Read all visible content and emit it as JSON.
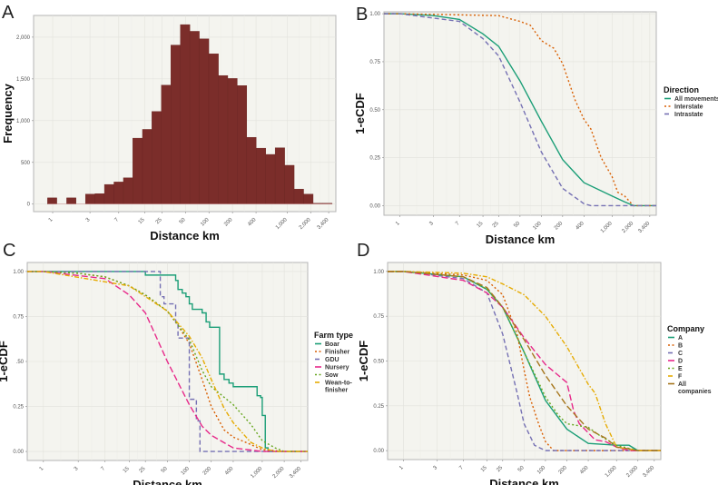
{
  "chart_data": [
    {
      "panel": "A",
      "type": "bar",
      "xlabel": "Distance km",
      "ylabel": "Frequency",
      "x_scale": "log",
      "xlim": [
        0.57,
        4200
      ],
      "ylim": [
        -90,
        2260
      ],
      "x_ticks": [
        1,
        3,
        7,
        15,
        25,
        50,
        100,
        200,
        400,
        1000,
        2000,
        3400
      ],
      "x_tick_labels": [
        "1",
        "3",
        "7",
        "15",
        "25",
        "50",
        "100",
        "200",
        "400",
        "1,000",
        "2,000",
        "3,400"
      ],
      "y_ticks": [
        0,
        500,
        1000,
        1500,
        2000
      ],
      "y_tick_labels": [
        "0",
        "500",
        "1,000",
        "1,500",
        "2,000"
      ],
      "grid": true,
      "bar_color": "#7b2d2a",
      "bin_edges": [
        0.86,
        1.13,
        1.51,
        1.99,
        2.63,
        3.48,
        4.6,
        6.08,
        8.04,
        10.6,
        14.1,
        18.6,
        24.6,
        32.5,
        43,
        56.9,
        75.2,
        99.5,
        132,
        174,
        230,
        304,
        402,
        532,
        703,
        930,
        1230,
        1626,
        2150,
        2843,
        3760
      ],
      "counts": [
        75,
        0,
        75,
        0,
        120,
        125,
        235,
        265,
        315,
        790,
        895,
        1110,
        1425,
        1905,
        2150,
        2070,
        1980,
        1800,
        1540,
        1505,
        1420,
        800,
        670,
        595,
        675,
        465,
        180,
        120,
        10,
        10
      ]
    },
    {
      "panel": "B",
      "type": "line",
      "xlabel": "Distance km",
      "ylabel": "1-eCDF",
      "x_scale": "log",
      "xlim": [
        0.6,
        4200
      ],
      "ylim": [
        -0.05,
        1.01
      ],
      "x_ticks": [
        1,
        3,
        7,
        15,
        25,
        50,
        100,
        200,
        400,
        1000,
        2000,
        3400
      ],
      "x_tick_labels": [
        "1",
        "3",
        "7",
        "15",
        "25",
        "50",
        "100",
        "200",
        "400",
        "1,000",
        "2,000",
        "3,400"
      ],
      "y_ticks": [
        0,
        0.25,
        0.5,
        0.75,
        1
      ],
      "y_tick_labels": [
        "0.00",
        "0.25",
        "0.50",
        "0.75",
        "1.00"
      ],
      "grid": true,
      "legend_title": "Direction",
      "legend_position": "right",
      "series": [
        {
          "name": "All movements",
          "color": "#1b9e77",
          "dash": "solid",
          "x": [
            0.6,
            1,
            3,
            7,
            15,
            25,
            50,
            100,
            200,
            400,
            1000,
            1500,
            2000,
            4200
          ],
          "y": [
            1,
            1,
            0.99,
            0.97,
            0.895,
            0.83,
            0.65,
            0.44,
            0.24,
            0.12,
            0.05,
            0.02,
            0,
            0
          ]
        },
        {
          "name": "Interstate",
          "color": "#d95f02",
          "dash": "dotted",
          "x": [
            0.6,
            1,
            25,
            50,
            70,
            100,
            150,
            200,
            300,
            400,
            500,
            700,
            1000,
            1200,
            1500,
            2000,
            4200
          ],
          "y": [
            1,
            1,
            0.99,
            0.96,
            0.94,
            0.86,
            0.82,
            0.74,
            0.55,
            0.45,
            0.4,
            0.25,
            0.15,
            0.07,
            0.05,
            0,
            0
          ]
        },
        {
          "name": "Intrastate",
          "color": "#7570b3",
          "dash": "dashed",
          "x": [
            0.6,
            1,
            7,
            15,
            25,
            50,
            100,
            200,
            400,
            500,
            4200
          ],
          "y": [
            1,
            1,
            0.96,
            0.87,
            0.78,
            0.54,
            0.28,
            0.09,
            0.01,
            0,
            0
          ]
        }
      ]
    },
    {
      "panel": "C",
      "type": "line",
      "xlabel": "Distance km",
      "ylabel": "1-eCDF",
      "x_scale": "log",
      "xlim": [
        0.6,
        4200
      ],
      "ylim": [
        -0.05,
        1.05
      ],
      "x_ticks": [
        1,
        3,
        7,
        15,
        25,
        50,
        100,
        200,
        400,
        1000,
        2000,
        3400
      ],
      "x_tick_labels": [
        "1",
        "3",
        "7",
        "15",
        "25",
        "50",
        "100",
        "200",
        "400",
        "1,000",
        "2,000",
        "3,400"
      ],
      "y_ticks": [
        0,
        0.25,
        0.5,
        0.75,
        1
      ],
      "y_tick_labels": [
        "0.00",
        "0.25",
        ".50",
        "0.75",
        "1.00"
      ],
      "grid": true,
      "legend_title": "Farm type",
      "legend_position": "right",
      "series": [
        {
          "name": "Boar",
          "color": "#1b9e77",
          "dash": "solid",
          "step": true,
          "x": [
            0.6,
            25,
            65,
            70,
            80,
            90,
            100,
            110,
            150,
            170,
            190,
            260,
            300,
            350,
            400,
            850,
            950,
            1000,
            1100,
            1200,
            4200
          ],
          "y": [
            1,
            0.98,
            0.95,
            0.9,
            0.88,
            0.86,
            0.82,
            0.79,
            0.77,
            0.72,
            0.69,
            0.43,
            0.4,
            0.38,
            0.36,
            0.31,
            0.3,
            0.2,
            0.02,
            0,
            0
          ]
        },
        {
          "name": "Finisher",
          "color": "#d95f02",
          "dash": "dotted",
          "x": [
            0.6,
            1,
            3,
            7,
            15,
            25,
            50,
            70,
            100,
            150,
            200,
            300,
            400,
            600,
            1000,
            2000,
            4200
          ],
          "y": [
            1,
            1,
            0.99,
            0.97,
            0.92,
            0.87,
            0.78,
            0.7,
            0.6,
            0.4,
            0.25,
            0.12,
            0.08,
            0.05,
            0.01,
            0,
            0
          ]
        },
        {
          "name": "GDU",
          "color": "#7570b3",
          "dash": "dashed",
          "step": true,
          "x": [
            0.6,
            40,
            45,
            65,
            70,
            100,
            125,
            140,
            4200
          ],
          "y": [
            1,
            0.86,
            0.82,
            0.72,
            0.63,
            0.29,
            0.17,
            0,
            0
          ]
        },
        {
          "name": "Nursery",
          "color": "#e7298a",
          "dash": "longdash",
          "x": [
            0.6,
            1,
            7,
            15,
            25,
            50,
            100,
            150,
            200,
            400,
            1000,
            4200
          ],
          "y": [
            1,
            1,
            0.96,
            0.87,
            0.77,
            0.5,
            0.26,
            0.14,
            0.09,
            0.02,
            0,
            0
          ]
        },
        {
          "name": "Sow",
          "color": "#66a61e",
          "dash": "dotted",
          "x": [
            0.6,
            1,
            3,
            7,
            15,
            25,
            50,
            100,
            150,
            200,
            400,
            700,
            1000,
            1500,
            2000,
            4200
          ],
          "y": [
            1,
            1,
            0.99,
            0.97,
            0.92,
            0.87,
            0.78,
            0.62,
            0.45,
            0.36,
            0.26,
            0.15,
            0.06,
            0.02,
            0,
            0
          ]
        },
        {
          "name": "Wean-to-finisher",
          "color": "#e6ab02",
          "dash": "dotdash",
          "x": [
            0.6,
            1,
            15,
            50,
            100,
            150,
            200,
            300,
            400,
            700,
            1000,
            1500,
            4200
          ],
          "y": [
            1,
            1,
            0.92,
            0.78,
            0.64,
            0.52,
            0.4,
            0.24,
            0.16,
            0.05,
            0.02,
            0,
            0
          ]
        }
      ]
    },
    {
      "panel": "D",
      "type": "line",
      "xlabel": "Distance km",
      "ylabel": "1-eCDF",
      "x_scale": "log",
      "xlim": [
        0.6,
        4200
      ],
      "ylim": [
        -0.05,
        1.05
      ],
      "x_ticks": [
        1,
        3,
        7,
        15,
        25,
        50,
        100,
        200,
        400,
        1000,
        2000,
        3400
      ],
      "x_tick_labels": [
        "1",
        "3",
        "7",
        "15",
        "25",
        "50",
        "100",
        "200",
        "400",
        "1,000",
        "2,000",
        "3,400"
      ],
      "y_ticks": [
        0,
        0.25,
        0.5,
        0.75,
        1
      ],
      "y_tick_labels": [
        "0.00",
        "0.25",
        "0.50",
        "0.75",
        "1.00"
      ],
      "grid": true,
      "legend_title": "Company",
      "legend_position": "right",
      "series": [
        {
          "name": "A",
          "color": "#1b9e77",
          "dash": "solid",
          "x": [
            0.6,
            1,
            7,
            15,
            25,
            50,
            100,
            200,
            400,
            1000,
            1500,
            2000,
            4200
          ],
          "y": [
            1,
            1,
            0.97,
            0.9,
            0.8,
            0.55,
            0.28,
            0.12,
            0.04,
            0.03,
            0.03,
            0,
            0
          ]
        },
        {
          "name": "B",
          "color": "#d95f02",
          "dash": "dotted",
          "x": [
            0.6,
            1,
            7,
            15,
            25,
            40,
            50,
            60,
            80,
            100,
            130,
            4200
          ],
          "y": [
            1,
            1,
            0.98,
            0.95,
            0.87,
            0.65,
            0.45,
            0.3,
            0.15,
            0.05,
            0,
            0
          ]
        },
        {
          "name": "C",
          "color": "#7570b3",
          "dash": "dashed",
          "x": [
            0.6,
            1,
            7,
            15,
            25,
            40,
            50,
            70,
            100,
            4200
          ],
          "y": [
            1,
            1,
            0.96,
            0.88,
            0.65,
            0.32,
            0.15,
            0.03,
            0,
            0
          ]
        },
        {
          "name": "D",
          "color": "#e7298a",
          "dash": "longdash",
          "x": [
            0.6,
            1,
            7,
            15,
            25,
            50,
            100,
            200,
            250,
            300,
            500,
            700,
            1000,
            1500,
            4200
          ],
          "y": [
            1,
            1,
            0.95,
            0.88,
            0.8,
            0.63,
            0.48,
            0.38,
            0.22,
            0.15,
            0.06,
            0.05,
            0.02,
            0,
            0
          ]
        },
        {
          "name": "E",
          "color": "#66a61e",
          "dash": "dotted",
          "x": [
            0.6,
            1,
            7,
            15,
            25,
            50,
            100,
            150,
            200,
            400,
            600,
            1000,
            2000,
            4200
          ],
          "y": [
            1,
            1,
            0.97,
            0.9,
            0.8,
            0.55,
            0.3,
            0.2,
            0.15,
            0.13,
            0.08,
            0.03,
            0,
            0
          ]
        },
        {
          "name": "F",
          "color": "#e6ab02",
          "dash": "dotdash",
          "x": [
            0.6,
            1,
            7,
            15,
            25,
            50,
            100,
            200,
            400,
            500,
            700,
            1000,
            2000,
            4200
          ],
          "y": [
            1,
            1,
            0.99,
            0.97,
            0.93,
            0.87,
            0.75,
            0.58,
            0.37,
            0.32,
            0.15,
            0.02,
            0,
            0
          ]
        },
        {
          "name": "All companies",
          "color": "#a6761d",
          "dash": "longdash",
          "x": [
            0.6,
            1,
            7,
            15,
            25,
            50,
            100,
            200,
            400,
            700,
            1000,
            1500,
            2000,
            4200
          ],
          "y": [
            1,
            1,
            0.97,
            0.91,
            0.8,
            0.62,
            0.42,
            0.25,
            0.12,
            0.07,
            0.02,
            0.01,
            0,
            0
          ]
        }
      ]
    }
  ]
}
